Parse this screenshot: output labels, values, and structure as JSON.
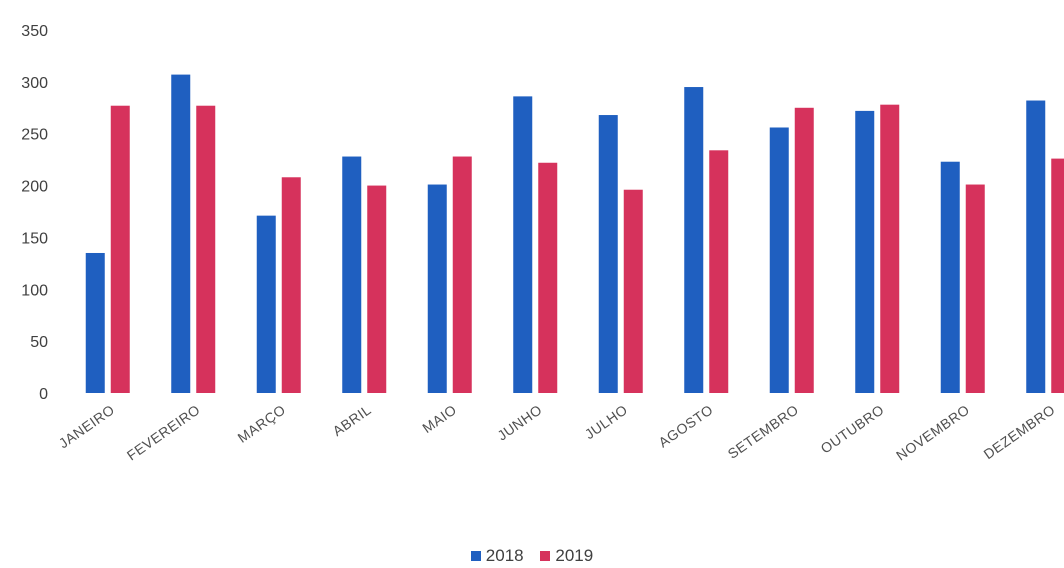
{
  "chart_data": {
    "type": "bar",
    "categories": [
      "JANEIRO",
      "FEVEREIRO",
      "MARÇO",
      "ABRIL",
      "MAIO",
      "JUNHO",
      "JULHO",
      "AGOSTO",
      "SETEMBRO",
      "OUTUBRO",
      "NOVEMBRO",
      "DEZEMBRO"
    ],
    "series": [
      {
        "name": "2018",
        "color": "#1f5fc0",
        "values": [
          135,
          307,
          171,
          228,
          201,
          286,
          268,
          295,
          256,
          272,
          223,
          282
        ]
      },
      {
        "name": "2019",
        "color": "#d6325c",
        "values": [
          277,
          277,
          208,
          200,
          228,
          222,
          196,
          234,
          275,
          278,
          201,
          226
        ]
      }
    ],
    "yticks": [
      0,
      50,
      100,
      150,
      200,
      250,
      300,
      350
    ],
    "ylim": [
      0,
      350
    ],
    "grid": false,
    "legend_position": "bottom"
  }
}
